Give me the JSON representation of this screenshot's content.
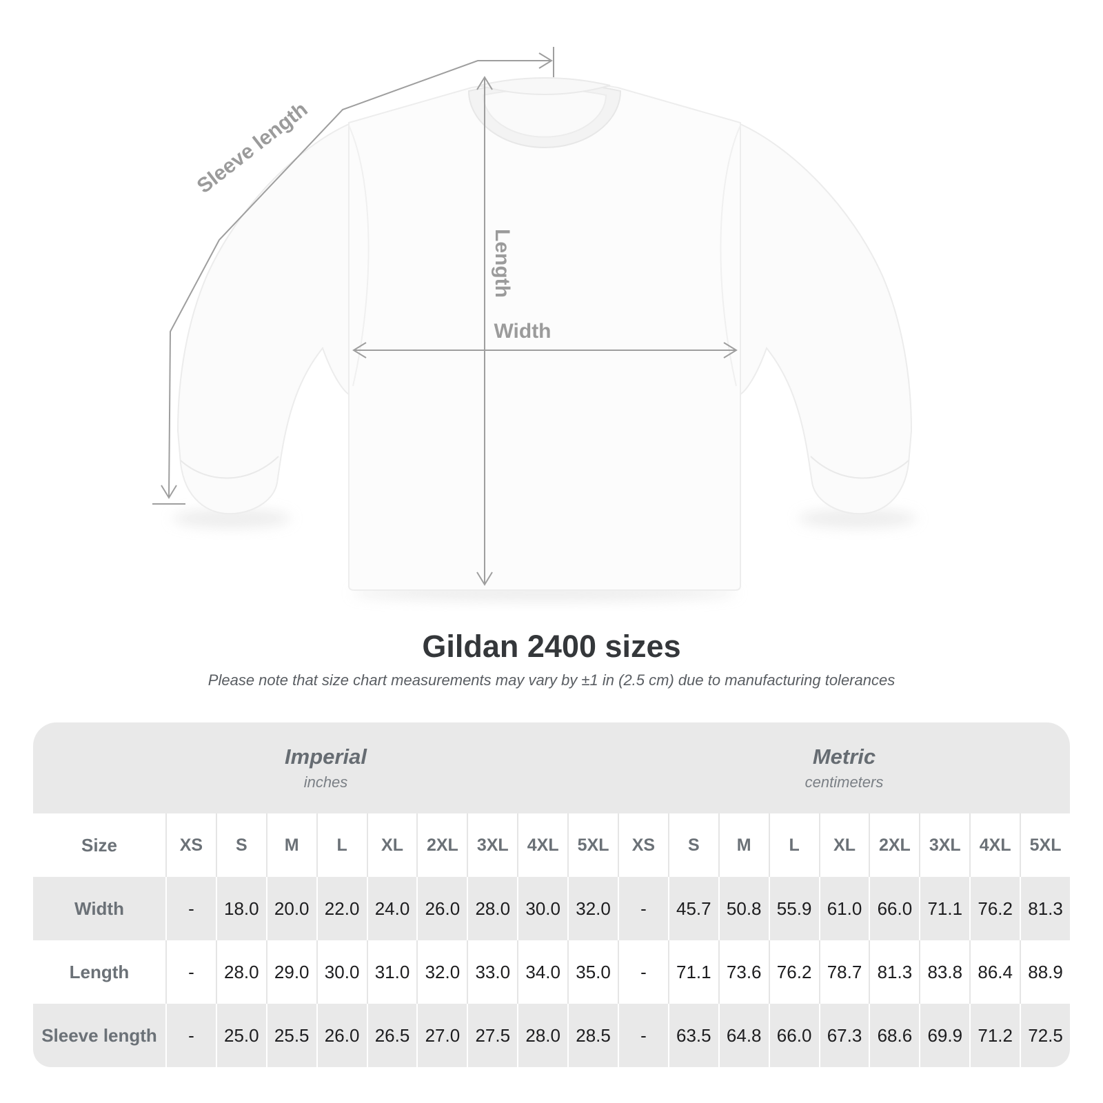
{
  "diagram": {
    "labels": {
      "sleeve_length": "Sleeve length",
      "length": "Length",
      "width": "Width"
    }
  },
  "title": "Gildan 2400 sizes",
  "subtitle": "Please note that size chart measurements may vary by ±1 in (2.5 cm) due to manufacturing tolerances",
  "table": {
    "unit_groups": [
      {
        "name": "Imperial",
        "unit": "inches"
      },
      {
        "name": "Metric",
        "unit": "centimeters"
      }
    ],
    "size_label": "Size",
    "sizes": [
      "XS",
      "S",
      "M",
      "L",
      "XL",
      "2XL",
      "3XL",
      "4XL",
      "5XL"
    ],
    "rows": [
      {
        "label": "Width",
        "imperial": [
          "-",
          "18.0",
          "20.0",
          "22.0",
          "24.0",
          "26.0",
          "28.0",
          "30.0",
          "32.0"
        ],
        "metric": [
          "-",
          "45.7",
          "50.8",
          "55.9",
          "61.0",
          "66.0",
          "71.1",
          "76.2",
          "81.3"
        ]
      },
      {
        "label": "Length",
        "imperial": [
          "-",
          "28.0",
          "29.0",
          "30.0",
          "31.0",
          "32.0",
          "33.0",
          "34.0",
          "35.0"
        ],
        "metric": [
          "-",
          "71.1",
          "73.6",
          "76.2",
          "78.7",
          "81.3",
          "83.8",
          "86.4",
          "88.9"
        ]
      },
      {
        "label": "Sleeve length",
        "imperial": [
          "-",
          "25.0",
          "25.5",
          "26.0",
          "26.5",
          "27.0",
          "27.5",
          "28.0",
          "28.5"
        ],
        "metric": [
          "-",
          "63.5",
          "64.8",
          "66.0",
          "67.3",
          "68.6",
          "69.9",
          "71.2",
          "72.5"
        ]
      }
    ]
  },
  "colors": {
    "stripe_gray": "#e9e9e9",
    "measure_line_gray": "#9e9e9e",
    "label_gray": "#6b7177",
    "value_dark": "#1d1d1f",
    "title_dark": "#34373a"
  }
}
